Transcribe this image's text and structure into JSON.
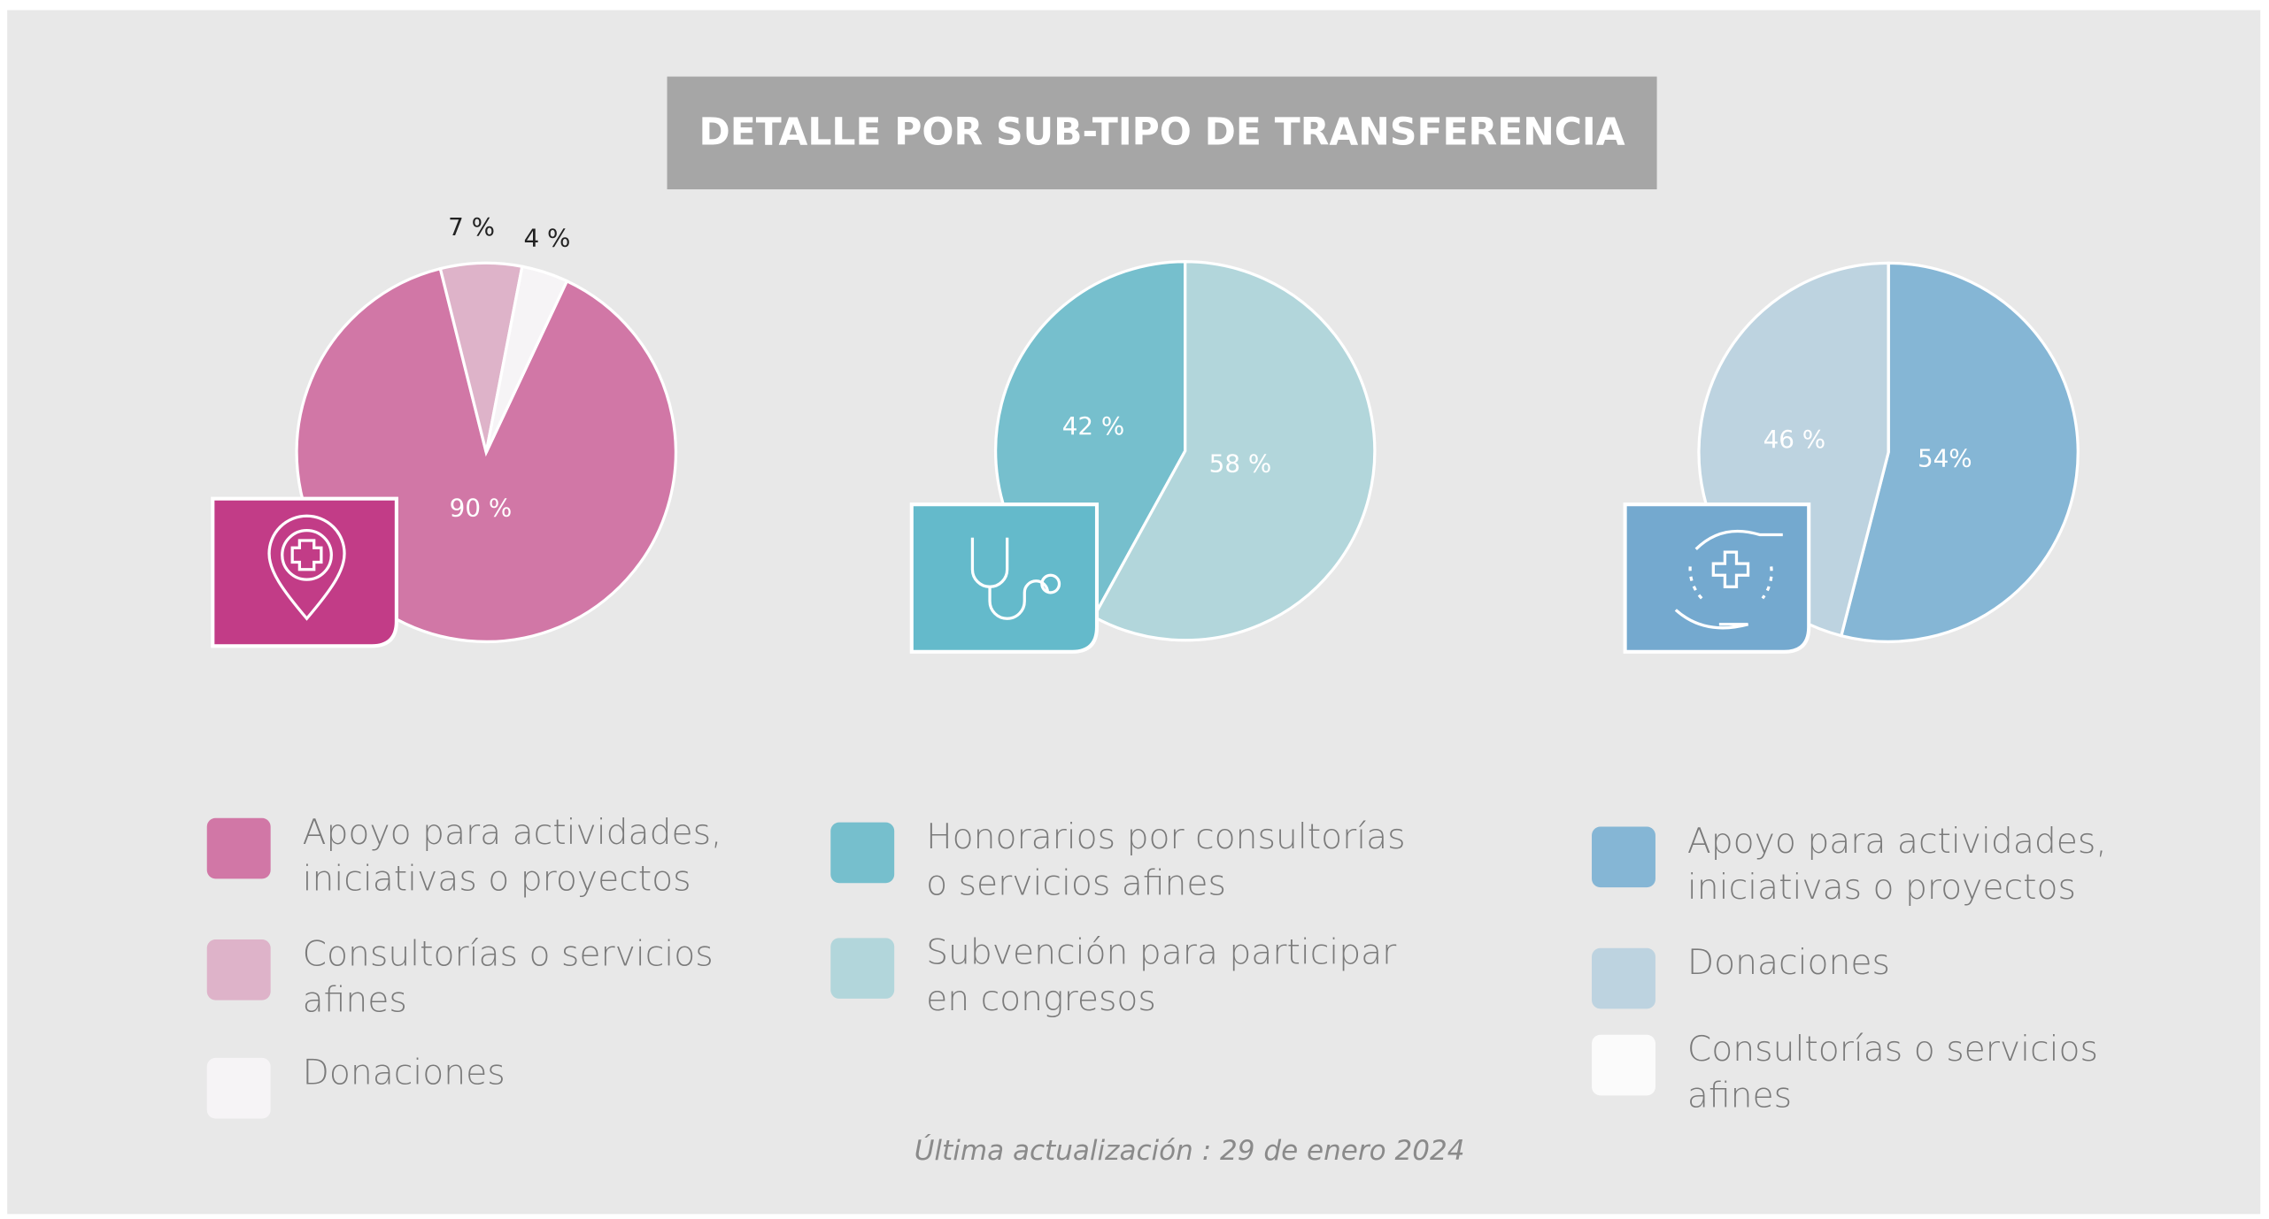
{
  "title": "DETALLE POR SUB-TIPO DE TRANSFERENCIA",
  "footer": "Última actualización : 29 de enero 2024",
  "chart_data": [
    {
      "type": "pie",
      "categories": [
        "Apoyo para actividades, iniciativas o proyectos",
        "Consultorías o servicios afines",
        "Donaciones"
      ],
      "values": [
        90,
        7,
        4
      ],
      "value_labels": [
        "90 %",
        "7 %",
        "4 %"
      ],
      "colors": [
        "#d177a6",
        "#deb3c9",
        "#f6f4f6"
      ]
    },
    {
      "type": "pie",
      "categories": [
        "Honorarios por consultorías o servicios afines",
        "Subvención para participar en congresos"
      ],
      "values": [
        42,
        58
      ],
      "value_labels": [
        "42 %",
        "58 %"
      ],
      "colors": [
        "#76bfcd",
        "#b2d6db"
      ]
    },
    {
      "type": "pie",
      "categories": [
        "Apoyo para actividades, iniciativas o proyectos",
        "Donaciones",
        "Consultorías o servicios afines"
      ],
      "values": [
        54,
        46,
        0
      ],
      "value_labels": [
        "54%",
        "46 %",
        null
      ],
      "colors": [
        "#85b6d5",
        "#bdd3e0",
        "#fbfbfb"
      ]
    }
  ]
}
